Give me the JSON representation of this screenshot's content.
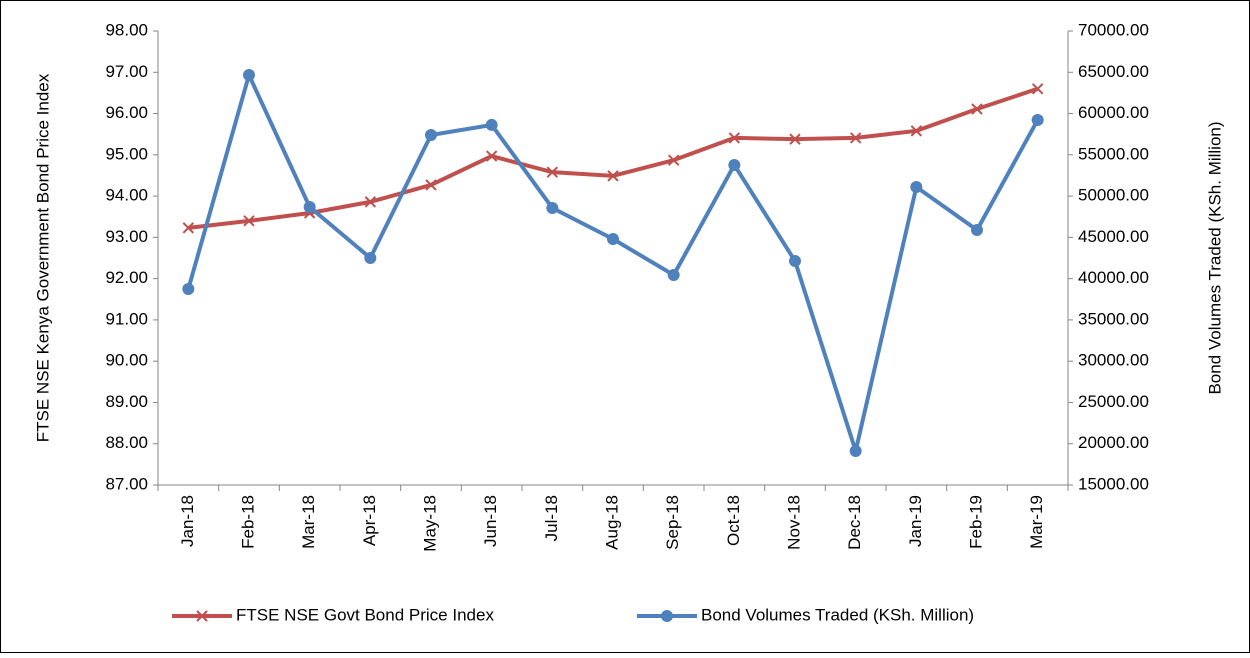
{
  "chart_data": {
    "type": "line",
    "categories": [
      "Jan-18",
      "Feb-18",
      "Mar-18",
      "Apr-18",
      "May-18",
      "Jun-18",
      "Jul-18",
      "Aug-18",
      "Sep-18",
      "Oct-18",
      "Nov-18",
      "Dec-18",
      "Jan-19",
      "Feb-19",
      "Mar-19"
    ],
    "ylabel": "FTSE NSE Kenya Government Bond Price Index",
    "y2label": "Bond Volumes Traded (KSh. Million)",
    "ylim": [
      87,
      98
    ],
    "yticks": [
      {
        "value": 87,
        "label": "87.00"
      },
      {
        "value": 88,
        "label": "88.00"
      },
      {
        "value": 89,
        "label": "89.00"
      },
      {
        "value": 90,
        "label": "90.00"
      },
      {
        "value": 91,
        "label": "91.00"
      },
      {
        "value": 92,
        "label": "92.00"
      },
      {
        "value": 93,
        "label": "93.00"
      },
      {
        "value": 94,
        "label": "94.00"
      },
      {
        "value": 95,
        "label": "95.00"
      },
      {
        "value": 96,
        "label": "96.00"
      },
      {
        "value": 97,
        "label": "97.00"
      },
      {
        "value": 98,
        "label": "98.00"
      }
    ],
    "y2lim": [
      15000,
      70000
    ],
    "y2ticks": [
      {
        "value": 15000,
        "label": "15000.00"
      },
      {
        "value": 20000,
        "label": "20000.00"
      },
      {
        "value": 25000,
        "label": "25000.00"
      },
      {
        "value": 30000,
        "label": "30000.00"
      },
      {
        "value": 35000,
        "label": "35000.00"
      },
      {
        "value": 40000,
        "label": "40000.00"
      },
      {
        "value": 45000,
        "label": "45000.00"
      },
      {
        "value": 50000,
        "label": "50000.00"
      },
      {
        "value": 55000,
        "label": "55000.00"
      },
      {
        "value": 60000,
        "label": "60000.00"
      },
      {
        "value": 65000,
        "label": "65000.00"
      },
      {
        "value": 70000,
        "label": "70000.00"
      }
    ],
    "legend": "bottom",
    "series": [
      {
        "name": "FTSE NSE Govt Bond Price Index",
        "color": "#c0504d",
        "marker": "x",
        "values": [
          93.23,
          93.4,
          93.59,
          93.86,
          94.27,
          94.97,
          94.58,
          94.49,
          94.87,
          95.41,
          95.38,
          95.41,
          95.58,
          96.11,
          96.6
        ]
      },
      {
        "name": "Bond Volumes Traded (KSh. Million)",
        "color": "#4f81bd",
        "marker": "circle",
        "axis": "y2",
        "values": [
          38750,
          64670,
          48680,
          42500,
          57400,
          58620,
          48560,
          44800,
          40440,
          53770,
          42140,
          19120,
          51100,
          45890,
          59220
        ]
      }
    ]
  }
}
